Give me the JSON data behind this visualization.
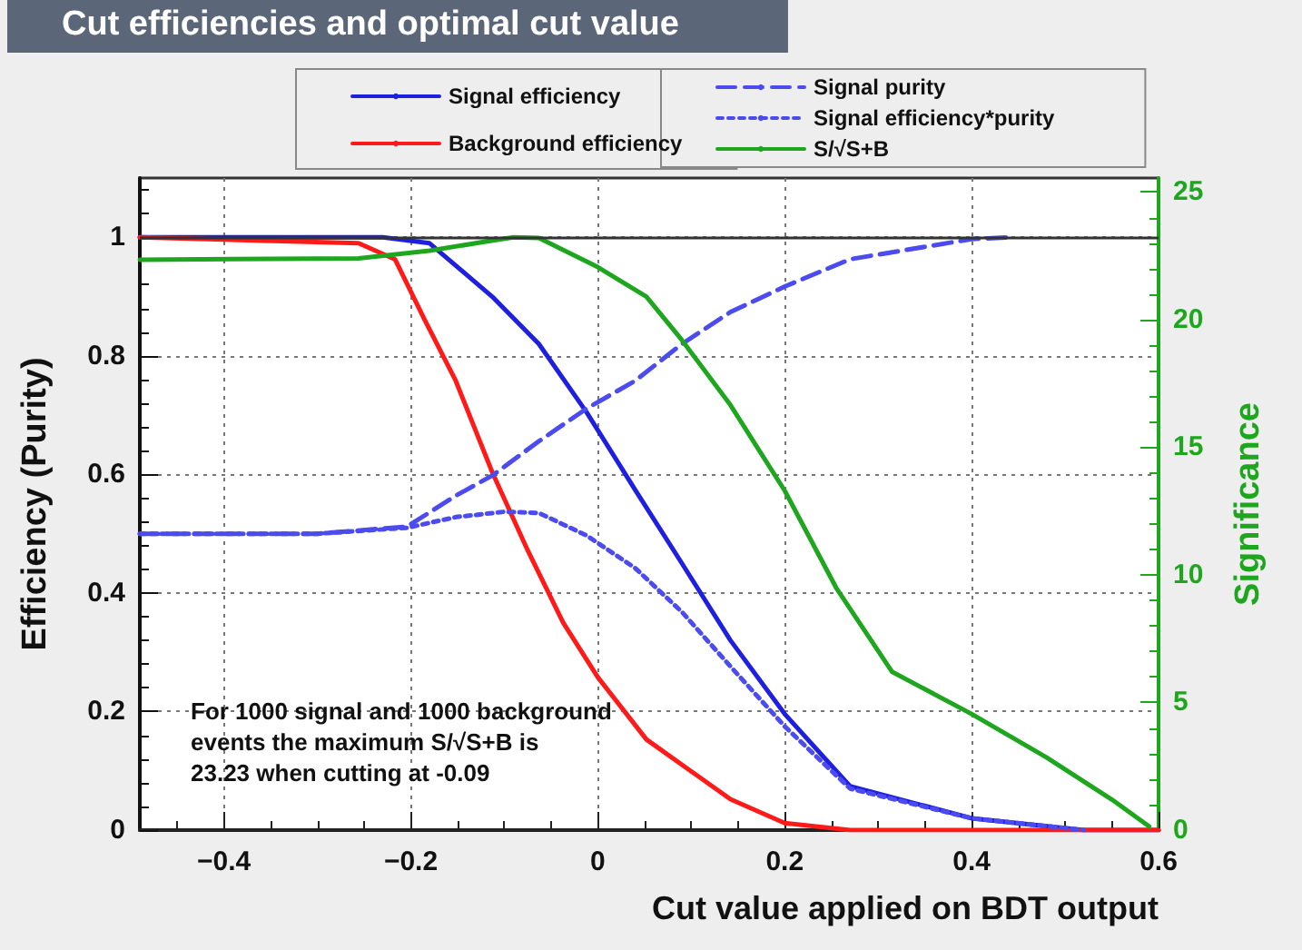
{
  "chart_data": {
    "type": "line",
    "title": "Cut efficiencies and optimal cut value",
    "xlabel": "Cut value applied on BDT output",
    "ylabel": "Efficiency (Purity)",
    "y2label": "Significance",
    "xlim": [
      -0.49,
      0.6
    ],
    "xticks": [
      -0.4,
      -0.2,
      0,
      0.2,
      0.4,
      0.6
    ],
    "ylim": [
      0,
      1.1
    ],
    "yticks": [
      0,
      0.2,
      0.4,
      0.6,
      0.8,
      1
    ],
    "y2lim": [
      0,
      25.55
    ],
    "y2ticks": [
      0,
      5,
      10,
      15,
      20,
      25
    ],
    "grid": true,
    "legend": "top",
    "marker": "none",
    "ref_lines": [
      {
        "axis": "y",
        "value": 1,
        "color": "#333333"
      }
    ],
    "annotations": [
      "For 1000 signal and 1000 background\nevents the maximum S/√S+B is\n23.23 when cutting at -0.09"
    ],
    "series": [
      {
        "name": "Signal efficiency",
        "color": "#1f1fe0",
        "line_style": "solid",
        "x": [
          -0.49,
          -0.23,
          -0.18,
          -0.113,
          -0.063,
          -0.012,
          0.04,
          0.09,
          0.142,
          0.2,
          0.27,
          0.4,
          0.52,
          0.6
        ],
        "values": [
          1,
          1,
          0.99,
          0.9,
          0.82,
          0.705,
          0.574,
          0.45,
          0.32,
          0.196,
          0.074,
          0.02,
          0,
          0
        ]
      },
      {
        "name": "Background efficiency",
        "color": "#ff1a1a",
        "line_style": "solid",
        "x": [
          -0.49,
          -0.256,
          -0.217,
          -0.185,
          -0.152,
          -0.113,
          -0.075,
          -0.037,
          0,
          0.052,
          0.142,
          0.2,
          0.27,
          0.6
        ],
        "values": [
          1,
          0.99,
          0.963,
          0.86,
          0.758,
          0.604,
          0.472,
          0.35,
          0.258,
          0.153,
          0.052,
          0.012,
          0,
          0
        ]
      },
      {
        "name": "Signal purity",
        "color": "#4b4bf0",
        "line_style": "dashed",
        "x": [
          -0.49,
          -0.3,
          -0.204,
          -0.152,
          -0.113,
          -0.063,
          -0.012,
          0.04,
          0.09,
          0.142,
          0.2,
          0.27,
          0.4,
          0.44
        ],
        "values": [
          0.5,
          0.5,
          0.512,
          0.564,
          0.598,
          0.656,
          0.711,
          0.758,
          0.82,
          0.874,
          0.917,
          0.963,
          0.997,
          1
        ]
      },
      {
        "name": "Signal efficiency*purity",
        "color": "#4b4bf0",
        "line_style": "dotted",
        "x": [
          -0.49,
          -0.3,
          -0.204,
          -0.152,
          -0.1,
          -0.063,
          -0.012,
          0.04,
          0.09,
          0.142,
          0.2,
          0.27,
          0.4,
          0.52
        ],
        "values": [
          0.5,
          0.5,
          0.51,
          0.528,
          0.537,
          0.535,
          0.497,
          0.442,
          0.368,
          0.276,
          0.175,
          0.07,
          0.02,
          0
        ]
      },
      {
        "name": "S/√S+B",
        "color": "#1fa61f",
        "line_style": "solid",
        "axis": "y2",
        "x": [
          -0.49,
          -0.256,
          -0.18,
          -0.12,
          -0.09,
          -0.063,
          0,
          0.052,
          0.09,
          0.142,
          0.2,
          0.255,
          0.315,
          0.4,
          0.48,
          0.55,
          0.59
        ],
        "values": [
          22.35,
          22.4,
          22.7,
          23.06,
          23.23,
          23.2,
          22.06,
          20.9,
          19.2,
          16.65,
          13.3,
          9.5,
          6.2,
          4.55,
          2.85,
          1.2,
          0.14
        ]
      }
    ]
  }
}
